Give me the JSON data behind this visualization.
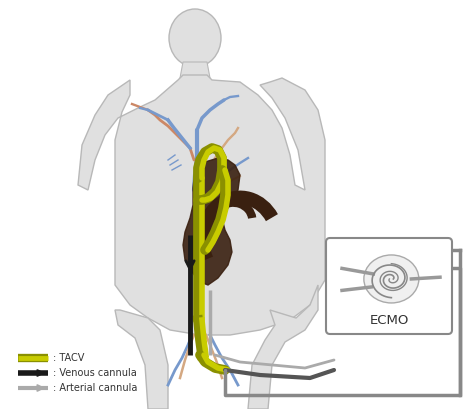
{
  "background_color": "#ffffff",
  "body_color": "#e0e0e0",
  "body_edge_color": "#b8b8b8",
  "tacv_outer": "#8a9000",
  "tacv_inner": "#c8cc00",
  "venous_color": "#1a1a1a",
  "arterial_color": "#aaaaaa",
  "blue_vessel": "#7799cc",
  "red_vessel": "#cc8866",
  "skin_vessel": "#d4a882",
  "heart_color": "#3a2010",
  "heart_alpha": 0.9,
  "ecmo_box_edge": "#888888",
  "ecmo_label": "ECMO",
  "legend_tacv": ": TACV",
  "legend_venous": ": Venous cannula",
  "legend_arterial": ": Arterial cannula",
  "fig_width": 4.74,
  "fig_height": 4.09,
  "dpi": 100
}
